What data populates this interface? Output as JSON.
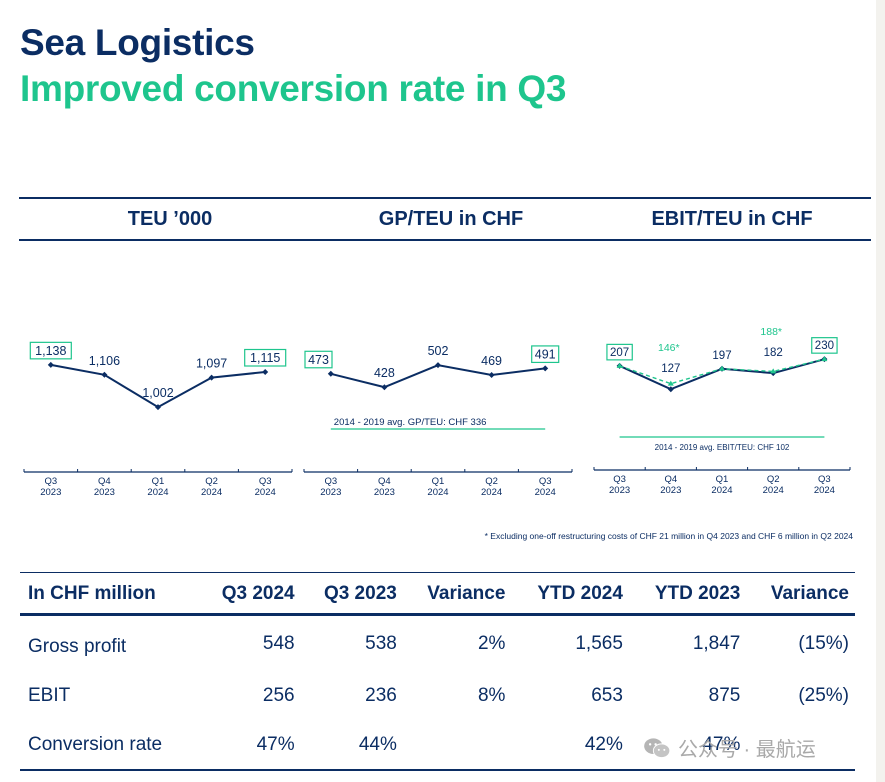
{
  "header": {
    "title": "Sea Logistics",
    "subtitle": "Improved conversion rate in Q3"
  },
  "colors": {
    "navy": "#0b2d63",
    "green": "#1ec58d",
    "background_strip": "#f3f2ee"
  },
  "chart_data": [
    {
      "type": "line",
      "title": "TEU ’000",
      "categories": [
        "Q3\n2023",
        "Q4\n2023",
        "Q1\n2024",
        "Q2\n2024",
        "Q3\n2024"
      ],
      "category_lines": [
        [
          "Q3",
          "2023"
        ],
        [
          "Q4",
          "2023"
        ],
        [
          "Q1",
          "2024"
        ],
        [
          "Q2",
          "2024"
        ],
        [
          "Q3",
          "2024"
        ]
      ],
      "series": [
        {
          "name": "TEU",
          "values": [
            1138,
            1106,
            1002,
            1097,
            1115
          ]
        }
      ],
      "labels": [
        "1,138",
        "1,106",
        "1,002",
        "1,097",
        "1,115"
      ],
      "boxed": [
        true,
        false,
        false,
        false,
        true
      ],
      "ylim": [
        800,
        1250
      ]
    },
    {
      "type": "line",
      "title": "GP/TEU in CHF",
      "categories": [
        "Q3\n2023",
        "Q4\n2023",
        "Q1\n2024",
        "Q2\n2024",
        "Q3\n2024"
      ],
      "category_lines": [
        [
          "Q3",
          "2023"
        ],
        [
          "Q4",
          "2023"
        ],
        [
          "Q1",
          "2024"
        ],
        [
          "Q2",
          "2024"
        ],
        [
          "Q3",
          "2024"
        ]
      ],
      "series": [
        {
          "name": "GP/TEU",
          "values": [
            473,
            428,
            502,
            469,
            491
          ]
        }
      ],
      "labels": [
        "473",
        "428",
        "502",
        "469",
        "491"
      ],
      "boxed": [
        true,
        false,
        false,
        false,
        true
      ],
      "reference": {
        "label": "2014 - 2019 avg. GP/TEU: CHF 336",
        "value": 336
      },
      "ylim": [
        150,
        620
      ]
    },
    {
      "type": "line",
      "title": "EBIT/TEU in CHF",
      "categories": [
        "Q3\n2023",
        "Q4\n2023",
        "Q1\n2024",
        "Q2\n2024",
        "Q3\n2024"
      ],
      "category_lines": [
        [
          "Q3",
          "2023"
        ],
        [
          "Q4",
          "2023"
        ],
        [
          "Q1",
          "2024"
        ],
        [
          "Q2",
          "2024"
        ],
        [
          "Q3",
          "2024"
        ]
      ],
      "series": [
        {
          "name": "EBIT/TEU",
          "values": [
            207,
            127,
            197,
            182,
            230
          ]
        },
        {
          "name": "EBIT/TEU excl. restructuring",
          "values": [
            207,
            146,
            197,
            188,
            230
          ],
          "dashed": true
        }
      ],
      "labels": [
        "207",
        "127",
        "197",
        "182",
        "230"
      ],
      "adjusted_labels": [
        null,
        "146*",
        null,
        "188*",
        null
      ],
      "boxed": [
        true,
        false,
        false,
        false,
        true
      ],
      "reference": {
        "label": "2014 - 2019 avg. EBIT/TEU: CHF 102",
        "value": 102
      },
      "ylim": [
        -150,
        330
      ]
    }
  ],
  "footnote": "* Excluding one-off restructuring costs of CHF 21 million in Q4 2023 and CHF 6 million in Q2 2024",
  "table": {
    "headers": [
      "In CHF million",
      "Q3 2024",
      "Q3 2023",
      "Variance",
      "YTD 2024",
      "YTD 2023",
      "Variance"
    ],
    "rows": [
      [
        "Gross profit",
        "548",
        "538",
        "2%",
        "1,565",
        "1,847",
        "(15%)"
      ],
      [
        "EBIT",
        "256",
        "236",
        "8%",
        "653",
        "875",
        "(25%)"
      ],
      [
        "Conversion rate",
        "47%",
        "44%",
        "",
        "42%",
        "47%",
        ""
      ]
    ]
  },
  "watermark": "公众号 · 最航运"
}
